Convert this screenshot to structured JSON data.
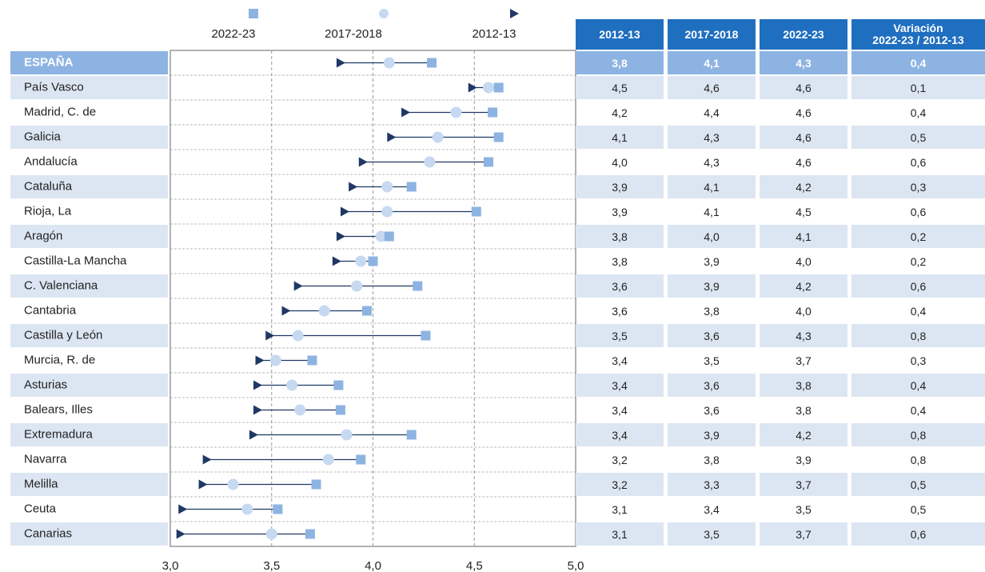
{
  "chart_data": {
    "type": "dumbbell",
    "categories": [
      "ESPAÑA",
      "País Vasco",
      "Madrid, C. de",
      "Galicia",
      "Andalucía",
      "Cataluña",
      "Rioja, La",
      "Aragón",
      "Castilla-La Mancha",
      "C. Valenciana",
      "Cantabria",
      "Castilla y León",
      "Murcia, R. de",
      "Asturias",
      "Balears, Illes",
      "Extremadura",
      "Navarra",
      "Melilla",
      "Ceuta",
      "Canarias"
    ],
    "series": [
      {
        "name": "2022-23",
        "color": "#8db3e2",
        "marker": "square",
        "values": [
          4.29,
          4.62,
          4.59,
          4.62,
          4.57,
          4.19,
          4.51,
          4.08,
          4.0,
          4.22,
          3.97,
          4.26,
          3.7,
          3.83,
          3.84,
          4.19,
          3.94,
          3.72,
          3.53,
          3.69
        ]
      },
      {
        "name": "2017-2018",
        "color": "#c6d9f1",
        "marker": "circle",
        "values": [
          4.08,
          4.57,
          4.41,
          4.32,
          4.28,
          4.07,
          4.07,
          4.04,
          3.94,
          3.92,
          3.76,
          3.63,
          3.52,
          3.6,
          3.64,
          3.87,
          3.78,
          3.31,
          3.38,
          3.5
        ]
      },
      {
        "name": "2012-13",
        "color": "#1f3864",
        "marker": "triangle",
        "values": [
          3.84,
          4.49,
          4.16,
          4.09,
          3.95,
          3.9,
          3.86,
          3.84,
          3.82,
          3.63,
          3.57,
          3.49,
          3.44,
          3.43,
          3.43,
          3.41,
          3.18,
          3.16,
          3.06,
          3.05
        ]
      }
    ],
    "xlim": [
      3,
      5
    ],
    "xticks": [
      {
        "value": 3,
        "label": "3,0"
      },
      {
        "value": 3.5,
        "label": "3,5"
      },
      {
        "value": 4,
        "label": "4,0"
      },
      {
        "value": 4.5,
        "label": "4,5"
      },
      {
        "value": 5,
        "label": "5,0"
      }
    ],
    "grid": true
  },
  "table": {
    "header": [
      "2012-13",
      "2017-2018",
      "2022-23",
      "Variación\n2022-23 / 2012-13"
    ],
    "rows": [
      [
        "3,8",
        "4,1",
        "4,3",
        "0,4"
      ],
      [
        "4,5",
        "4,6",
        "4,6",
        "0,1"
      ],
      [
        "4,2",
        "4,4",
        "4,6",
        "0,4"
      ],
      [
        "4,1",
        "4,3",
        "4,6",
        "0,5"
      ],
      [
        "4,0",
        "4,3",
        "4,6",
        "0,6"
      ],
      [
        "3,9",
        "4,1",
        "4,2",
        "0,3"
      ],
      [
        "3,9",
        "4,1",
        "4,5",
        "0,6"
      ],
      [
        "3,8",
        "4,0",
        "4,1",
        "0,2"
      ],
      [
        "3,8",
        "3,9",
        "4,0",
        "0,2"
      ],
      [
        "3,6",
        "3,9",
        "4,2",
        "0,6"
      ],
      [
        "3,6",
        "3,8",
        "4,0",
        "0,4"
      ],
      [
        "3,5",
        "3,6",
        "4,3",
        "0,8"
      ],
      [
        "3,4",
        "3,5",
        "3,7",
        "0,3"
      ],
      [
        "3,4",
        "3,6",
        "3,8",
        "0,4"
      ],
      [
        "3,4",
        "3,6",
        "3,8",
        "0,4"
      ],
      [
        "3,4",
        "3,9",
        "4,2",
        "0,8"
      ],
      [
        "3,2",
        "3,8",
        "3,9",
        "0,8"
      ],
      [
        "3,2",
        "3,3",
        "3,7",
        "0,5"
      ],
      [
        "3,1",
        "3,4",
        "3,5",
        "0,5"
      ],
      [
        "3,1",
        "3,5",
        "3,7",
        "0,6"
      ]
    ]
  }
}
